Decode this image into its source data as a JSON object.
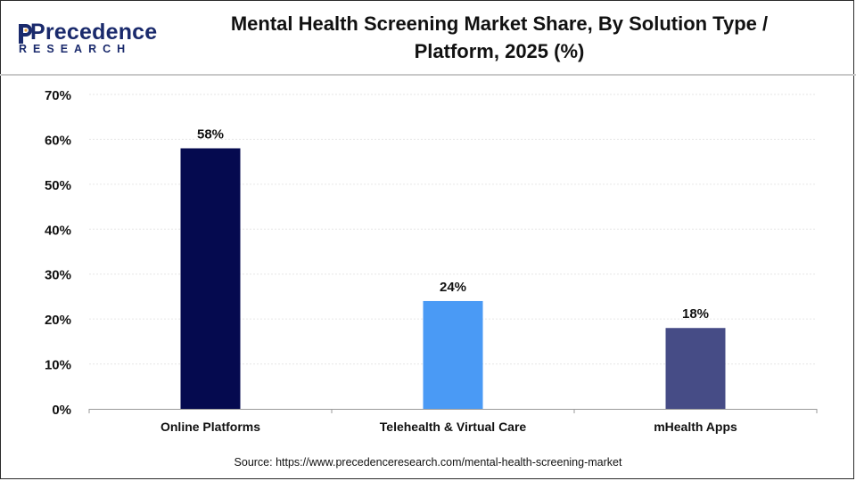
{
  "brand": {
    "logo_text": "Precedence",
    "logo_subtext": "RESEARCH"
  },
  "chart_data": {
    "type": "bar",
    "title_line1": "Mental Health Screening Market Share, By Solution Type /",
    "title_line2": "Platform, 2025 (%)",
    "categories": [
      "Online Platforms",
      "Telehealth & Virtual Care",
      "mHealth Apps"
    ],
    "values": [
      58,
      24,
      18
    ],
    "data_labels": [
      "58%",
      "24%",
      "18%"
    ],
    "colors": [
      "#050a4f",
      "#4a9af5",
      "#464c86"
    ],
    "ylim": [
      0,
      70
    ],
    "yticks": [
      "0%",
      "10%",
      "20%",
      "30%",
      "40%",
      "50%",
      "60%",
      "70%"
    ],
    "ytick_values": [
      0,
      10,
      20,
      30,
      40,
      50,
      60,
      70
    ],
    "grid": true,
    "xlabel": "",
    "ylabel": ""
  },
  "source": "Source: https://www.precedenceresearch.com/mental-health-screening-market"
}
